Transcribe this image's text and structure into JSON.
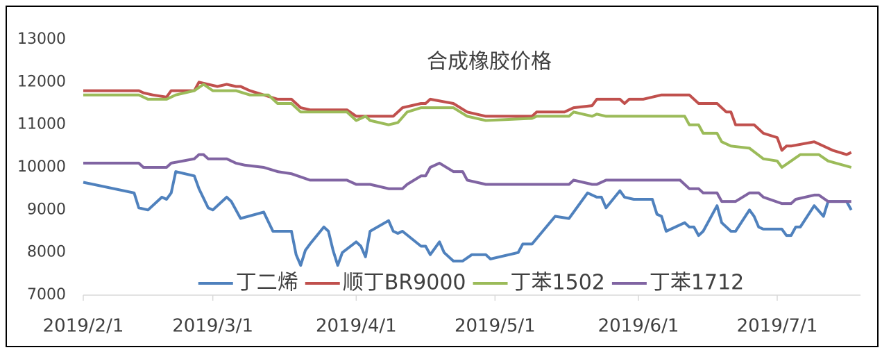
{
  "chart_data": {
    "type": "line",
    "title": "合成橡胶价格",
    "xlim": [
      "2019/2/1",
      "2019/7/19"
    ],
    "xticks": [
      "2019/2/1",
      "2019/3/1",
      "2019/4/1",
      "2019/5/1",
      "2019/6/1",
      "2019/7/1"
    ],
    "ylim": [
      7000,
      13000
    ],
    "yticks": [
      7000,
      8000,
      9000,
      10000,
      11000,
      12000,
      13000
    ],
    "grid": false,
    "legend": "bottom",
    "series": [
      {
        "name": "丁二烯",
        "color": "#4f81bd",
        "x": [
          "2019/2/1",
          "2019/2/12",
          "2019/2/13",
          "2019/2/15",
          "2019/2/18",
          "2019/2/19",
          "2019/2/20",
          "2019/2/21",
          "2019/2/25",
          "2019/2/26",
          "2019/2/28",
          "2019/3/1",
          "2019/3/4",
          "2019/3/5",
          "2019/3/7",
          "2019/3/12",
          "2019/3/14",
          "2019/3/18",
          "2019/3/19",
          "2019/3/20",
          "2019/3/21",
          "2019/3/22",
          "2019/3/25",
          "2019/3/26",
          "2019/3/27",
          "2019/3/28",
          "2019/3/29",
          "2019/4/1",
          "2019/4/2",
          "2019/4/3",
          "2019/4/4",
          "2019/4/8",
          "2019/4/9",
          "2019/4/10",
          "2019/4/11",
          "2019/4/15",
          "2019/4/16",
          "2019/4/17",
          "2019/4/19",
          "2019/4/20",
          "2019/4/22",
          "2019/4/24",
          "2019/4/26",
          "2019/4/29",
          "2019/4/30",
          "2019/5/6",
          "2019/5/7",
          "2019/5/9",
          "2019/5/14",
          "2019/5/17",
          "2019/5/21",
          "2019/5/23",
          "2019/5/24",
          "2019/5/25",
          "2019/5/28",
          "2019/5/29",
          "2019/5/31",
          "2019/6/4",
          "2019/6/5",
          "2019/6/6",
          "2019/6/7",
          "2019/6/11",
          "2019/6/12",
          "2019/6/13",
          "2019/6/14",
          "2019/6/15",
          "2019/6/18",
          "2019/6/19",
          "2019/6/21",
          "2019/6/22",
          "2019/6/25",
          "2019/6/26",
          "2019/6/27",
          "2019/6/28",
          "2019/7/2",
          "2019/7/3",
          "2019/7/4",
          "2019/7/5",
          "2019/7/6",
          "2019/7/9",
          "2019/7/11",
          "2019/7/12",
          "2019/7/16",
          "2019/7/17"
        ],
        "values": [
          9650,
          9400,
          9050,
          9000,
          9300,
          9250,
          9400,
          9900,
          9800,
          9500,
          9050,
          9000,
          9300,
          9200,
          8800,
          8950,
          8500,
          8500,
          7950,
          7700,
          8050,
          8200,
          8600,
          8500,
          8050,
          7700,
          8000,
          8250,
          8150,
          7900,
          8500,
          8750,
          8500,
          8450,
          8500,
          8150,
          8150,
          7950,
          8250,
          8000,
          7800,
          7800,
          7950,
          7950,
          7850,
          8000,
          8200,
          8200,
          8850,
          8800,
          9400,
          9300,
          9300,
          9050,
          9450,
          9300,
          9250,
          9250,
          8900,
          8850,
          8500,
          8700,
          8600,
          8600,
          8400,
          8500,
          9100,
          8700,
          8500,
          8500,
          9000,
          8850,
          8600,
          8550,
          8550,
          8400,
          8400,
          8600,
          8600,
          9100,
          8850,
          9200,
          9200,
          9000
        ]
      },
      {
        "name": "顺丁BR9000",
        "color": "#c0504d",
        "x": [
          "2019/2/1",
          "2019/2/13",
          "2019/2/14",
          "2019/2/16",
          "2019/2/19",
          "2019/2/20",
          "2019/2/25",
          "2019/2/26",
          "2019/2/28",
          "2019/3/2",
          "2019/3/4",
          "2019/3/6",
          "2019/3/7",
          "2019/3/9",
          "2019/3/12",
          "2019/3/15",
          "2019/3/18",
          "2019/3/19",
          "2019/3/20",
          "2019/3/22",
          "2019/3/30",
          "2019/4/1",
          "2019/4/9",
          "2019/4/11",
          "2019/4/15",
          "2019/4/16",
          "2019/4/17",
          "2019/4/22",
          "2019/4/25",
          "2019/4/29",
          "2019/5/9",
          "2019/5/10",
          "2019/5/16",
          "2019/5/18",
          "2019/5/22",
          "2019/5/23",
          "2019/5/28",
          "2019/5/29",
          "2019/5/30",
          "2019/6/2",
          "2019/6/4",
          "2019/6/6",
          "2019/6/12",
          "2019/6/14",
          "2019/6/18",
          "2019/6/20",
          "2019/6/21",
          "2019/6/22",
          "2019/6/26",
          "2019/6/28",
          "2019/7/1",
          "2019/7/2",
          "2019/7/3",
          "2019/7/4",
          "2019/7/9",
          "2019/7/11",
          "2019/7/13",
          "2019/7/16",
          "2019/7/17"
        ],
        "values": [
          11800,
          11800,
          11750,
          11700,
          11650,
          11800,
          11800,
          12000,
          11950,
          11900,
          11950,
          11900,
          11900,
          11800,
          11700,
          11600,
          11600,
          11500,
          11400,
          11350,
          11350,
          11200,
          11200,
          11400,
          11500,
          11500,
          11600,
          11500,
          11300,
          11200,
          11200,
          11300,
          11300,
          11400,
          11450,
          11600,
          11600,
          11500,
          11600,
          11600,
          11650,
          11700,
          11700,
          11500,
          11500,
          11300,
          11300,
          11000,
          11000,
          10800,
          10700,
          10400,
          10500,
          10500,
          10600,
          10500,
          10400,
          10300,
          10350
        ]
      },
      {
        "name": "丁苯1502",
        "color": "#9bbb59",
        "x": [
          "2019/2/1",
          "2019/2/13",
          "2019/2/15",
          "2019/2/19",
          "2019/2/21",
          "2019/2/25",
          "2019/2/27",
          "2019/3/1",
          "2019/3/6",
          "2019/3/9",
          "2019/3/13",
          "2019/3/15",
          "2019/3/18",
          "2019/3/20",
          "2019/3/30",
          "2019/4/1",
          "2019/4/3",
          "2019/4/4",
          "2019/4/8",
          "2019/4/10",
          "2019/4/12",
          "2019/4/15",
          "2019/4/22",
          "2019/4/25",
          "2019/4/29",
          "2019/5/9",
          "2019/5/10",
          "2019/5/17",
          "2019/5/18",
          "2019/5/22",
          "2019/5/23",
          "2019/5/25",
          "2019/6/11",
          "2019/6/12",
          "2019/6/14",
          "2019/6/15",
          "2019/6/18",
          "2019/6/19",
          "2019/6/21",
          "2019/6/25",
          "2019/6/28",
          "2019/7/1",
          "2019/7/2",
          "2019/7/6",
          "2019/7/10",
          "2019/7/12",
          "2019/7/17"
        ],
        "values": [
          11700,
          11700,
          11600,
          11600,
          11700,
          11800,
          11950,
          11800,
          11800,
          11700,
          11700,
          11500,
          11500,
          11300,
          11300,
          11100,
          11200,
          11100,
          11000,
          11050,
          11300,
          11400,
          11400,
          11200,
          11100,
          11150,
          11200,
          11200,
          11300,
          11200,
          11250,
          11200,
          11200,
          11000,
          11000,
          10800,
          10800,
          10600,
          10500,
          10450,
          10200,
          10150,
          10000,
          10300,
          10300,
          10150,
          10000
        ]
      },
      {
        "name": "丁苯1712",
        "color": "#8064a2",
        "x": [
          "2019/2/1",
          "2019/2/13",
          "2019/2/14",
          "2019/2/19",
          "2019/2/20",
          "2019/2/25",
          "2019/2/26",
          "2019/2/27",
          "2019/2/28",
          "2019/3/4",
          "2019/3/6",
          "2019/3/8",
          "2019/3/12",
          "2019/3/15",
          "2019/3/18",
          "2019/3/22",
          "2019/3/30",
          "2019/4/1",
          "2019/4/4",
          "2019/4/8",
          "2019/4/11",
          "2019/4/12",
          "2019/4/15",
          "2019/4/16",
          "2019/4/17",
          "2019/4/19",
          "2019/4/22",
          "2019/4/24",
          "2019/4/25",
          "2019/4/29",
          "2019/5/17",
          "2019/5/18",
          "2019/5/22",
          "2019/5/23",
          "2019/5/25",
          "2019/6/10",
          "2019/6/12",
          "2019/6/14",
          "2019/6/15",
          "2019/6/18",
          "2019/6/19",
          "2019/6/22",
          "2019/6/25",
          "2019/6/27",
          "2019/6/28",
          "2019/7/2",
          "2019/7/4",
          "2019/7/5",
          "2019/7/9",
          "2019/7/10",
          "2019/7/12",
          "2019/7/17"
        ],
        "values": [
          10100,
          10100,
          10000,
          10000,
          10100,
          10200,
          10300,
          10300,
          10200,
          10200,
          10100,
          10050,
          10000,
          9900,
          9850,
          9700,
          9700,
          9600,
          9600,
          9500,
          9500,
          9600,
          9800,
          9800,
          10000,
          10100,
          9900,
          9900,
          9700,
          9600,
          9600,
          9700,
          9600,
          9600,
          9700,
          9700,
          9500,
          9500,
          9400,
          9400,
          9200,
          9200,
          9400,
          9400,
          9300,
          9150,
          9150,
          9250,
          9350,
          9350,
          9200,
          9200
        ]
      }
    ]
  }
}
